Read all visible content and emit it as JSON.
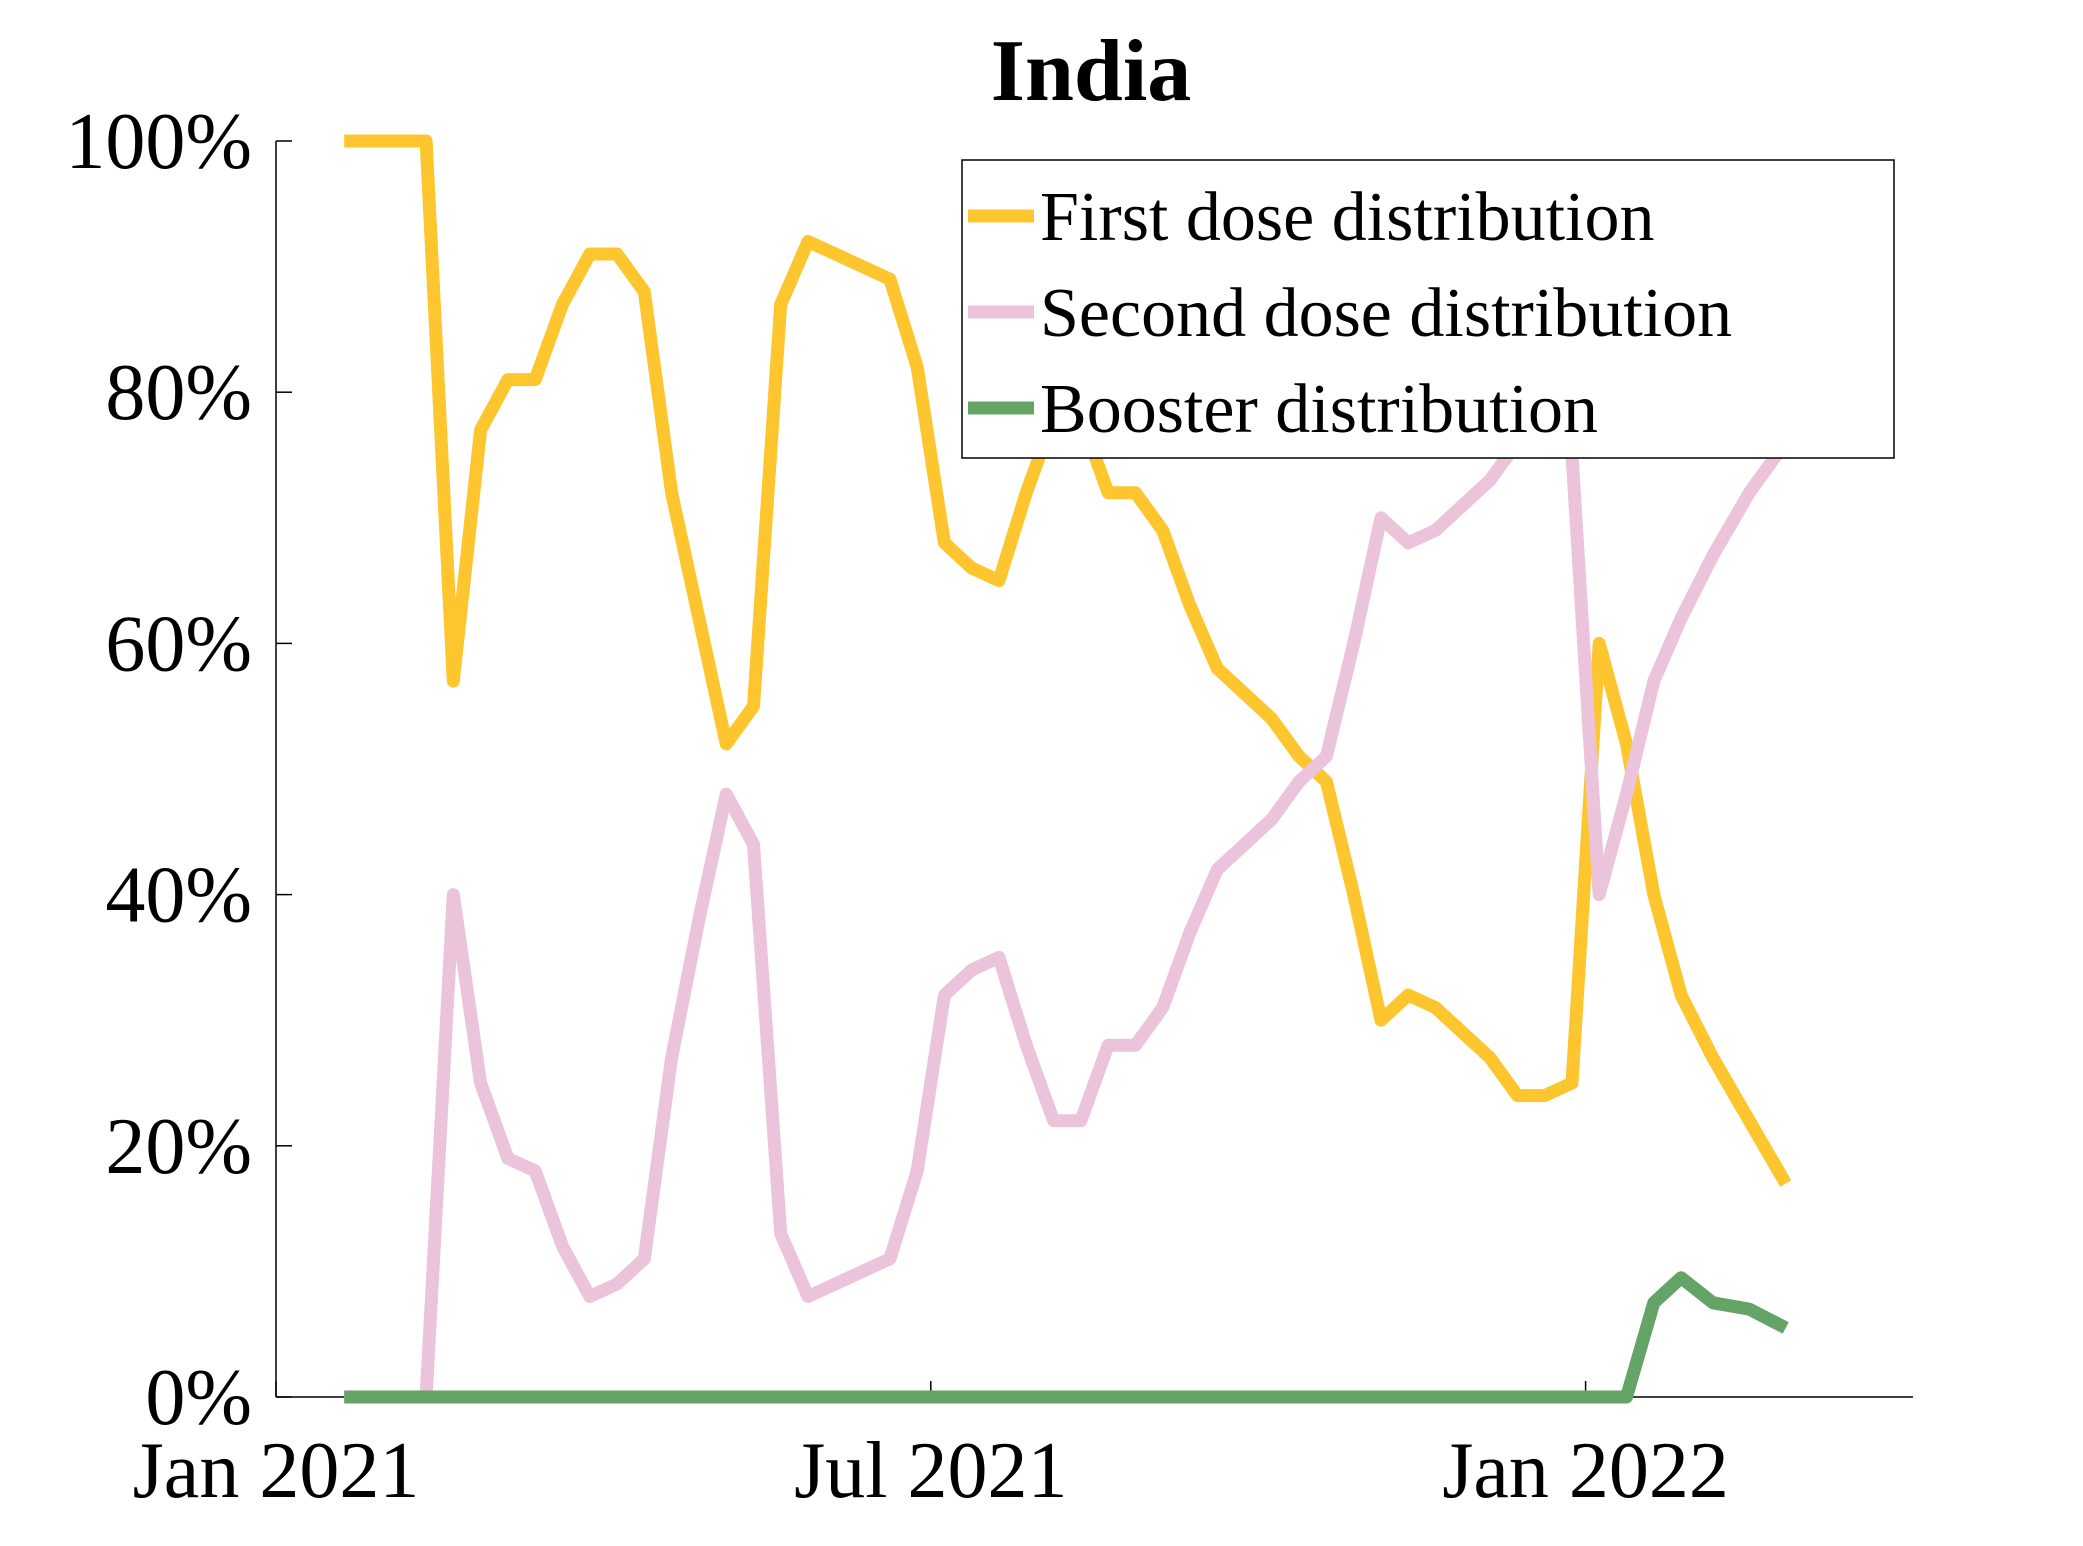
{
  "chart_data": {
    "type": "line",
    "title": "India",
    "x": [
      "2021-01",
      "2021-01",
      "2021-01",
      "2021-01",
      "2021-02",
      "2021-02",
      "2021-02",
      "2021-02",
      "2021-03",
      "2021-03",
      "2021-03",
      "2021-03",
      "2021-04",
      "2021-04",
      "2021-04",
      "2021-04",
      "2021-05",
      "2021-05",
      "2021-05",
      "2021-05",
      "2021-06",
      "2021-06",
      "2021-06",
      "2021-06",
      "2021-07",
      "2021-07",
      "2021-07",
      "2021-07",
      "2021-08",
      "2021-08",
      "2021-08",
      "2021-08",
      "2021-09",
      "2021-09",
      "2021-09",
      "2021-09",
      "2021-10",
      "2021-10",
      "2021-10",
      "2021-10",
      "2021-11",
      "2021-11",
      "2021-11",
      "2021-11",
      "2021-12",
      "2021-12",
      "2021-12",
      "2021-12",
      "2022-01",
      "2022-01",
      "2022-01",
      "2022-01",
      "2022-02",
      "2022-02",
      "2022-02"
    ],
    "series": [
      {
        "name": "First dose distribution",
        "color": "#fdc52e",
        "values": [
          null,
          null,
          100,
          100,
          100,
          100,
          57,
          77,
          81,
          81,
          87,
          91,
          91,
          88,
          72,
          62,
          52,
          55,
          87,
          92,
          91,
          90,
          89,
          82,
          68,
          66,
          65,
          72,
          78,
          78,
          72,
          72,
          69,
          63,
          58,
          56,
          54,
          51,
          49,
          40,
          30,
          32,
          31,
          29,
          27,
          24,
          24,
          25,
          60,
          52,
          40,
          32,
          27,
          22,
          17
        ]
      },
      {
        "name": "Second dose distribution",
        "color": "#ebc4dc",
        "values": [
          null,
          null,
          0,
          0,
          0,
          0,
          40,
          25,
          19,
          18,
          12,
          8,
          9,
          11,
          27,
          38,
          48,
          44,
          13,
          8,
          9,
          10,
          11,
          18,
          32,
          34,
          35,
          28,
          22,
          22,
          28,
          28,
          31,
          37,
          42,
          44,
          46,
          49,
          51,
          60,
          70,
          68,
          69,
          71,
          73,
          76,
          76,
          75,
          40,
          48,
          57,
          62,
          67,
          72,
          76
        ]
      },
      {
        "name": "Booster distribution",
        "color": "#64a466",
        "values": [
          null,
          null,
          0,
          0,
          0,
          0,
          0,
          0,
          0,
          0,
          0,
          0,
          0,
          0,
          0,
          0,
          0,
          0,
          0,
          0,
          0,
          0,
          0,
          0,
          0,
          0,
          0,
          0,
          0,
          0,
          0,
          0,
          0,
          0,
          0,
          0,
          0,
          0,
          0,
          0,
          0,
          0,
          0,
          0,
          0,
          0,
          0,
          0,
          0,
          0,
          7.5,
          9.5,
          7.5,
          7,
          5.5
        ]
      }
    ],
    "xlim": [
      "2021-01",
      "2022-04"
    ],
    "xticks": [
      {
        "value": "2021-01",
        "label": "Jan 2021"
      },
      {
        "value": "2021-07",
        "label": "Jul 2021"
      },
      {
        "value": "2022-01",
        "label": "Jan 2022"
      }
    ],
    "ylim": [
      0,
      100
    ],
    "yticks": [
      {
        "value": 0,
        "label": "0%"
      },
      {
        "value": 20,
        "label": "20%"
      },
      {
        "value": 40,
        "label": "40%"
      },
      {
        "value": 60,
        "label": "60%"
      },
      {
        "value": 80,
        "label": "80%"
      },
      {
        "value": 100,
        "label": "100%"
      }
    ],
    "legend": "upper right"
  }
}
